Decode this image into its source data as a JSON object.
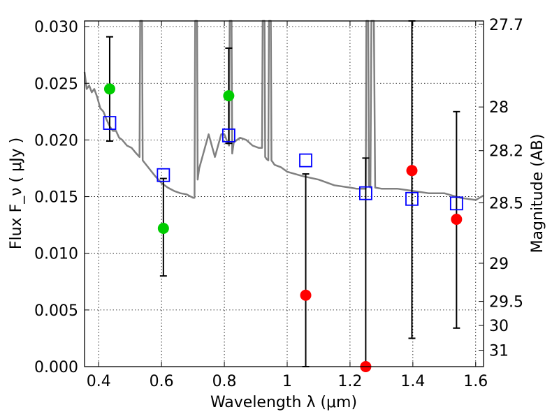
{
  "chart_data": {
    "type": "scatter",
    "xlabel": "Wavelength  λ (μm)",
    "ylabel": "Flux  F_ν  ( μJy )",
    "y2label": "Magnitude (AB)",
    "xlim": [
      0.355,
      1.625
    ],
    "ylim": [
      0.0,
      0.0305
    ],
    "grid": true,
    "x_ticks": [
      {
        "value": 0.4,
        "label": "0.4"
      },
      {
        "value": 0.6,
        "label": "0.6"
      },
      {
        "value": 0.8,
        "label": "0.8"
      },
      {
        "value": 1.0,
        "label": "1"
      },
      {
        "value": 1.2,
        "label": "1.2"
      },
      {
        "value": 1.4,
        "label": "1.4"
      },
      {
        "value": 1.6,
        "label": "1.6"
      }
    ],
    "y_ticks": [
      {
        "value": 0.0,
        "label": "0.000"
      },
      {
        "value": 0.005,
        "label": "0.005"
      },
      {
        "value": 0.01,
        "label": "0.010"
      },
      {
        "value": 0.015,
        "label": "0.015"
      },
      {
        "value": 0.02,
        "label": "0.020"
      },
      {
        "value": 0.025,
        "label": "0.025"
      },
      {
        "value": 0.03,
        "label": "0.030"
      }
    ],
    "y2_ticks": [
      {
        "mag": 27.7,
        "label": "27.7"
      },
      {
        "mag": 28.0,
        "label": "28"
      },
      {
        "mag": 28.2,
        "label": "28.2"
      },
      {
        "mag": 28.5,
        "label": "28.5"
      },
      {
        "mag": 29.0,
        "label": "29"
      },
      {
        "mag": 29.5,
        "label": "29.5"
      },
      {
        "mag": 30.0,
        "label": "30"
      },
      {
        "mag": 31.0,
        "label": "31"
      }
    ],
    "series": [
      {
        "kind": "model-spectrum",
        "color": "#808080",
        "x": [
          0.355,
          0.362,
          0.37,
          0.378,
          0.386,
          0.395,
          0.405,
          0.415,
          0.425,
          0.435,
          0.445,
          0.455,
          0.465,
          0.475,
          0.49,
          0.505,
          0.52,
          0.53,
          0.532,
          0.534,
          0.536,
          0.538,
          0.54,
          0.56,
          0.58,
          0.6,
          0.62,
          0.64,
          0.66,
          0.68,
          0.7,
          0.705,
          0.707,
          0.709,
          0.711,
          0.713,
          0.715,
          0.72,
          0.73,
          0.74,
          0.75,
          0.76,
          0.77,
          0.78,
          0.79,
          0.8,
          0.81,
          0.815,
          0.817,
          0.819,
          0.821,
          0.823,
          0.825,
          0.83,
          0.85,
          0.87,
          0.89,
          0.91,
          0.92,
          0.922,
          0.924,
          0.926,
          0.928,
          0.93,
          0.935,
          0.94,
          0.942,
          0.944,
          0.946,
          0.948,
          0.95,
          0.955,
          0.96,
          0.98,
          1.0,
          1.05,
          1.1,
          1.15,
          1.2,
          1.22,
          1.24,
          1.25,
          1.252,
          1.254,
          1.256,
          1.258,
          1.26,
          1.265,
          1.268,
          1.27,
          1.272,
          1.274,
          1.276,
          1.28,
          1.3,
          1.35,
          1.4,
          1.45,
          1.5,
          1.55,
          1.6,
          1.625
        ],
        "y": [
          0.026,
          0.0245,
          0.0248,
          0.0242,
          0.0245,
          0.0238,
          0.0228,
          0.0225,
          0.0218,
          0.0212,
          0.0208,
          0.0208,
          0.0202,
          0.02,
          0.0195,
          0.0193,
          0.0188,
          0.0185,
          0.0305,
          0.0305,
          0.0305,
          0.0305,
          0.0182,
          0.0175,
          0.0168,
          0.0162,
          0.0158,
          0.0155,
          0.0153,
          0.0152,
          0.0149,
          0.0149,
          0.0305,
          0.0305,
          0.0305,
          0.0305,
          0.0165,
          0.0175,
          0.0185,
          0.0195,
          0.0205,
          0.0195,
          0.0185,
          0.0195,
          0.0205,
          0.0205,
          0.0198,
          0.0195,
          0.0305,
          0.0305,
          0.0305,
          0.0305,
          0.0188,
          0.0198,
          0.0202,
          0.02,
          0.0195,
          0.0193,
          0.0193,
          0.0305,
          0.0305,
          0.0305,
          0.0305,
          0.0185,
          0.0183,
          0.0182,
          0.0305,
          0.0305,
          0.0305,
          0.0305,
          0.0182,
          0.018,
          0.0178,
          0.0176,
          0.0172,
          0.0168,
          0.0165,
          0.016,
          0.0158,
          0.0157,
          0.0157,
          0.0157,
          0.0305,
          0.0305,
          0.0305,
          0.0305,
          0.016,
          0.0158,
          0.0305,
          0.0305,
          0.0305,
          0.0305,
          0.0305,
          0.0158,
          0.0157,
          0.0157,
          0.0155,
          0.0153,
          0.0153,
          0.0149,
          0.0147,
          0.0151
        ]
      },
      {
        "kind": "model-photometry",
        "marker": "open-square",
        "color": "#0000ff",
        "x": [
          0.435,
          0.606,
          0.814,
          1.059,
          1.25,
          1.397,
          1.539
        ],
        "y": [
          0.0215,
          0.0169,
          0.0204,
          0.0182,
          0.0153,
          0.0148,
          0.0144
        ]
      },
      {
        "kind": "measured-optical",
        "marker": "filled-circle",
        "color": "#00cc00",
        "x": [
          0.435,
          0.606,
          0.814
        ],
        "y": [
          0.0245,
          0.0122,
          0.0239
        ],
        "err_low": [
          0.0199,
          0.008,
          0.0197
        ],
        "err_high": [
          0.0291,
          0.0166,
          0.0281
        ]
      },
      {
        "kind": "measured-infrared",
        "marker": "filled-circle",
        "color": "#ff0000",
        "x": [
          1.059,
          1.25,
          1.397,
          1.539
        ],
        "y": [
          0.0063,
          0.0,
          0.0173,
          0.013
        ],
        "err_low": [
          0.0,
          0.0,
          0.0025,
          0.0034
        ],
        "err_high": [
          0.017,
          0.0184,
          0.0305,
          0.0225
        ]
      }
    ]
  }
}
